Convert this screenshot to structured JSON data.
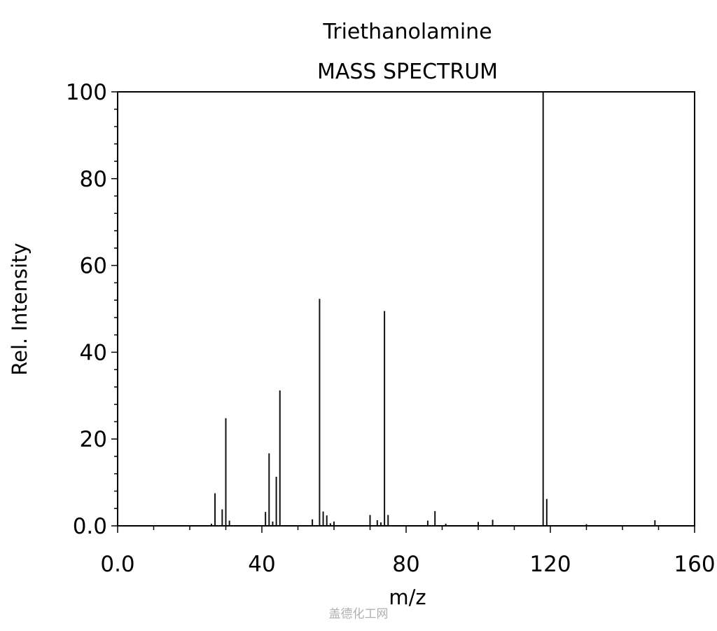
{
  "chart_data": {
    "type": "bar",
    "title": "Triethanolamine",
    "subtitle": "MASS SPECTRUM",
    "xlabel": "m/z",
    "ylabel": "Rel. Intensity",
    "xlim": [
      0,
      160
    ],
    "ylim": [
      0,
      100
    ],
    "x_ticks": [
      0,
      40,
      80,
      120,
      160
    ],
    "x_tick_labels": [
      "0.0",
      "40",
      "80",
      "120",
      "160"
    ],
    "y_ticks": [
      0,
      20,
      40,
      60,
      80,
      100
    ],
    "y_tick_labels": [
      "0.0",
      "20",
      "40",
      "60",
      "80",
      "100"
    ],
    "grid": false,
    "peaks": [
      {
        "mz": 26,
        "intensity": 0.5
      },
      {
        "mz": 27,
        "intensity": 7.5
      },
      {
        "mz": 29,
        "intensity": 3.8
      },
      {
        "mz": 30,
        "intensity": 24.8
      },
      {
        "mz": 31,
        "intensity": 1.2
      },
      {
        "mz": 41,
        "intensity": 3.2
      },
      {
        "mz": 42,
        "intensity": 16.7
      },
      {
        "mz": 43,
        "intensity": 1.0
      },
      {
        "mz": 44,
        "intensity": 11.3
      },
      {
        "mz": 45,
        "intensity": 31.2
      },
      {
        "mz": 54,
        "intensity": 1.5
      },
      {
        "mz": 56,
        "intensity": 52.3
      },
      {
        "mz": 57,
        "intensity": 3.3
      },
      {
        "mz": 58,
        "intensity": 2.4
      },
      {
        "mz": 59,
        "intensity": 0.6
      },
      {
        "mz": 60,
        "intensity": 1.0
      },
      {
        "mz": 70,
        "intensity": 2.5
      },
      {
        "mz": 72,
        "intensity": 1.3
      },
      {
        "mz": 73,
        "intensity": 0.8
      },
      {
        "mz": 74,
        "intensity": 49.5
      },
      {
        "mz": 75,
        "intensity": 2.5
      },
      {
        "mz": 86,
        "intensity": 1.2
      },
      {
        "mz": 88,
        "intensity": 3.4
      },
      {
        "mz": 91,
        "intensity": 0.5
      },
      {
        "mz": 100,
        "intensity": 0.9
      },
      {
        "mz": 104,
        "intensity": 1.4
      },
      {
        "mz": 118,
        "intensity": 100
      },
      {
        "mz": 119,
        "intensity": 6.2
      },
      {
        "mz": 130,
        "intensity": 0.4
      },
      {
        "mz": 149,
        "intensity": 1.3
      }
    ]
  },
  "watermark": "盖德化工网"
}
